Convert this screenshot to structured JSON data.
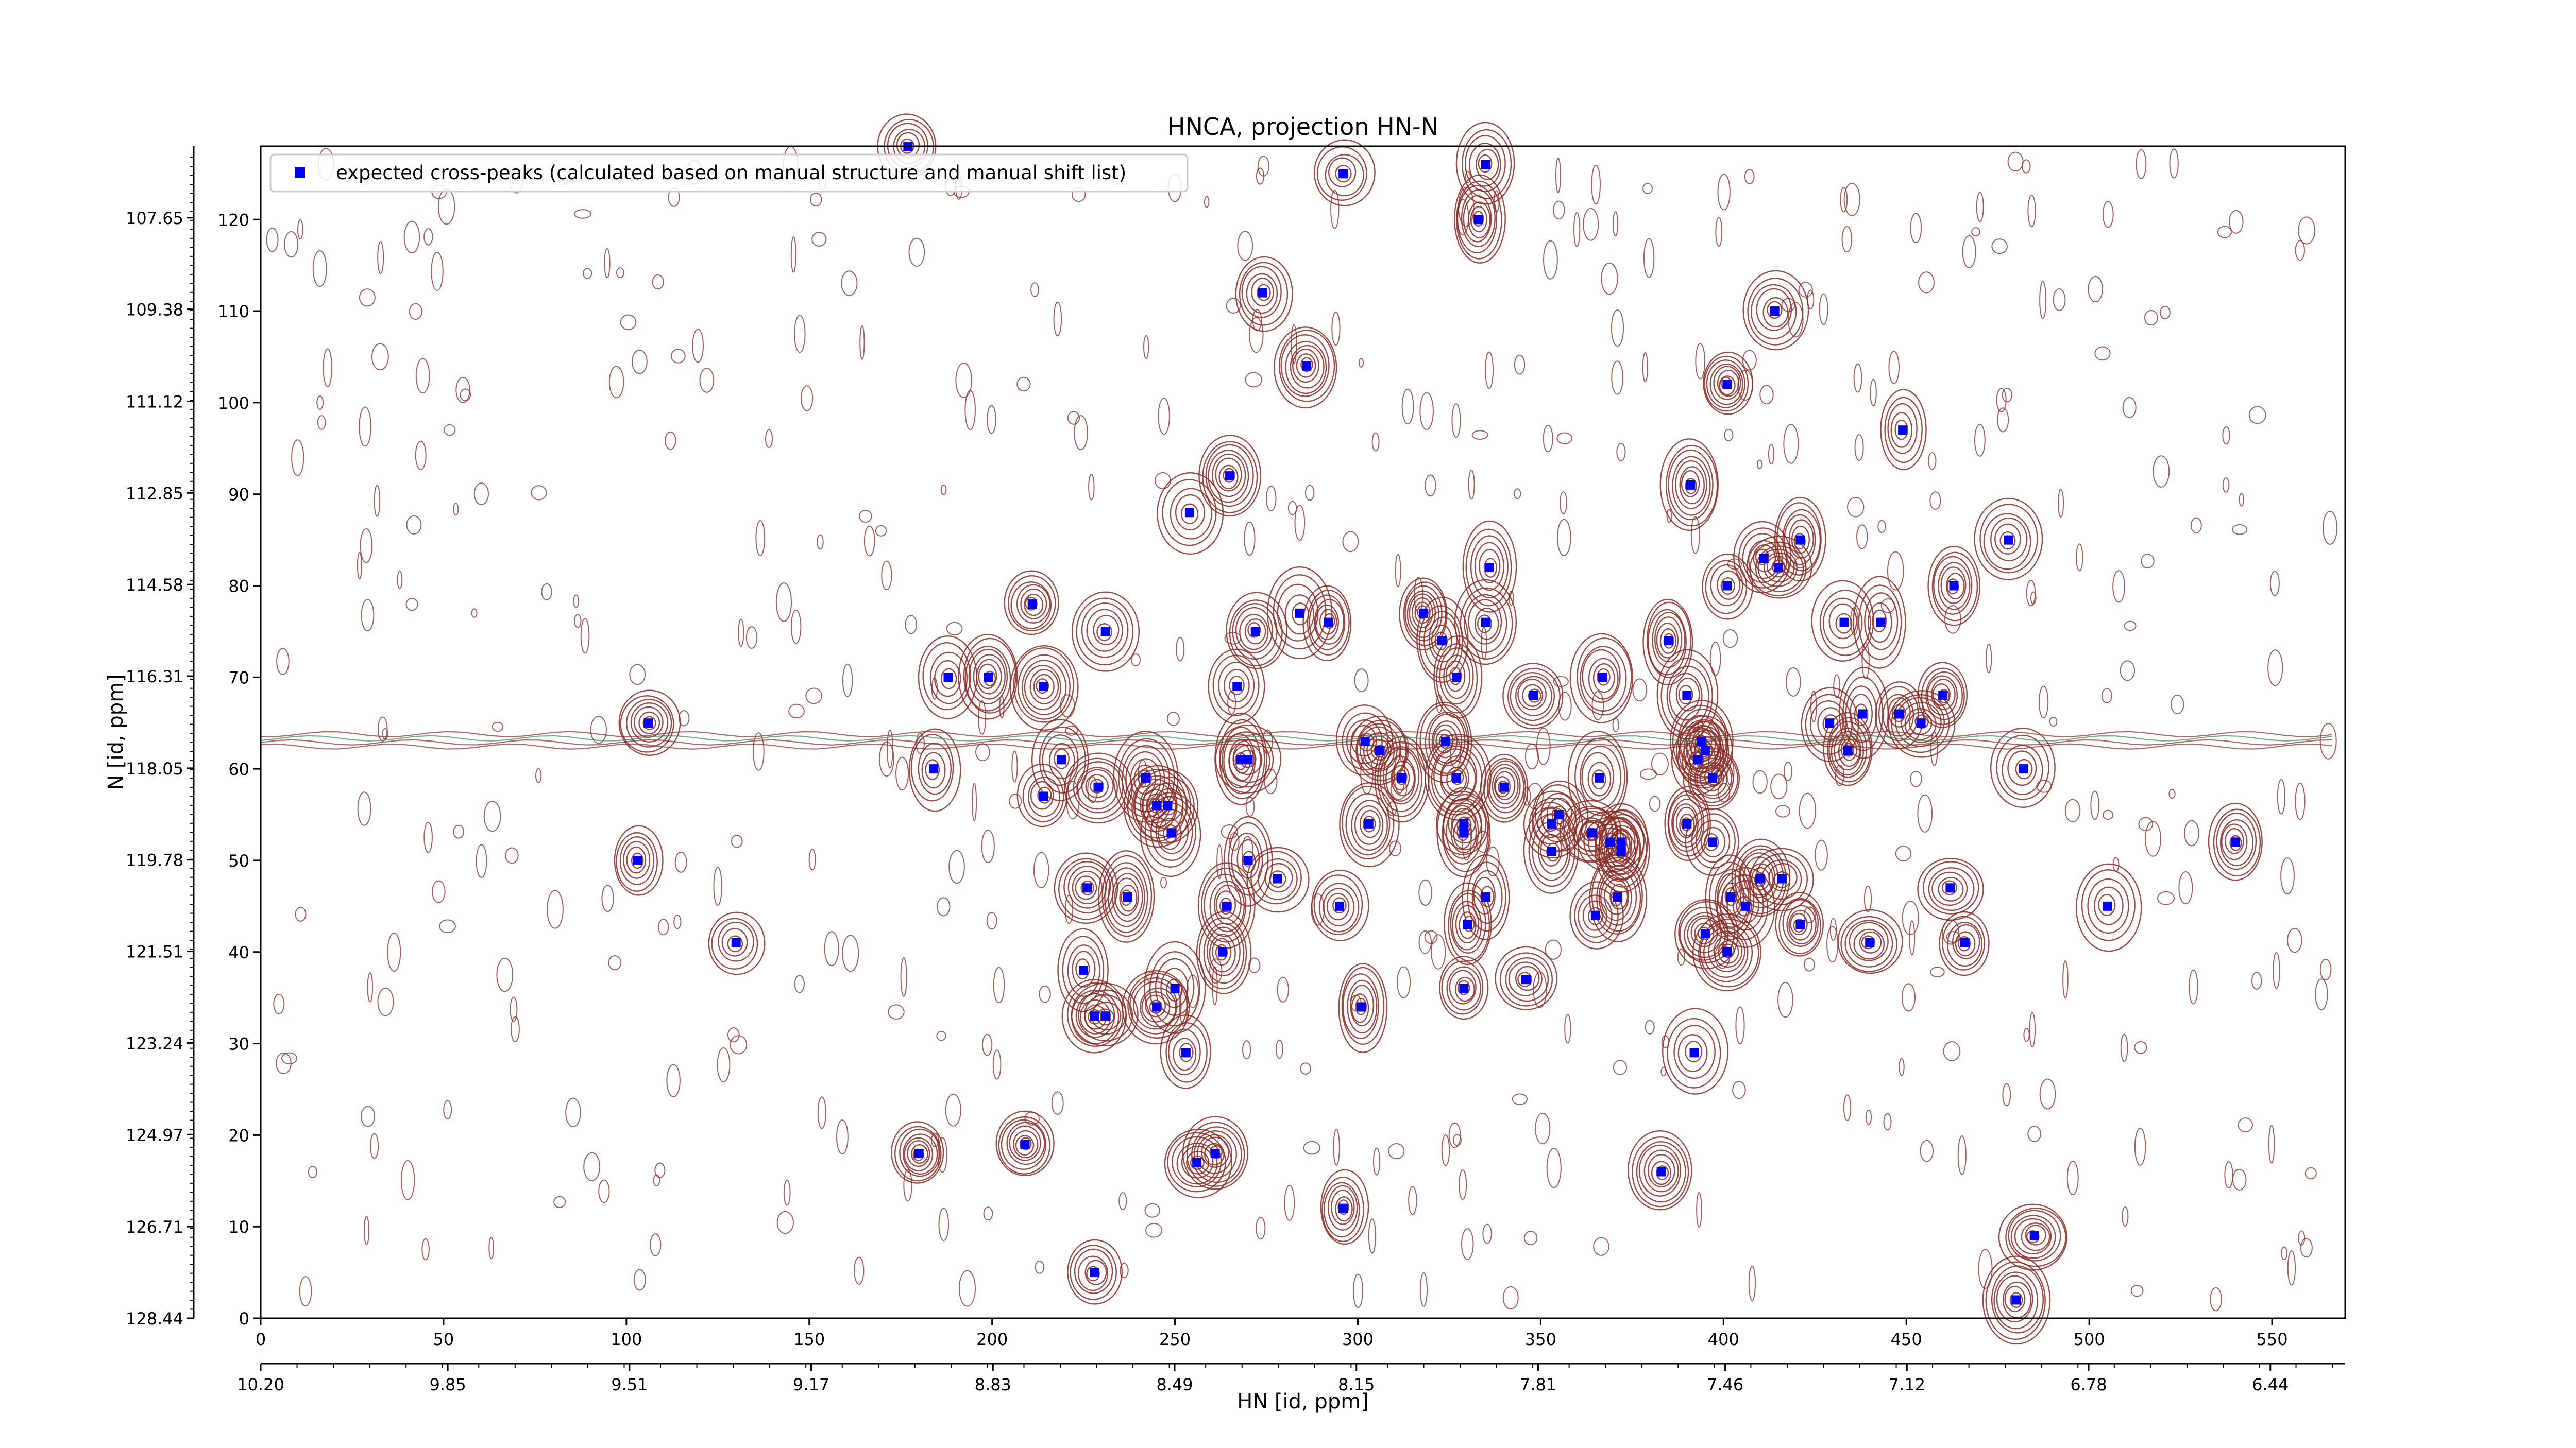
{
  "chart_data": {
    "type": "scatter",
    "title": "HNCA, projection HN-N",
    "xlabel": "HN [id, ppm]",
    "ylabel": "N [id, ppm]",
    "legend": {
      "position": "top-left",
      "label": "expected cross-peaks (calculated based on manual structure and manual shift list)"
    },
    "grid": false,
    "colors": {
      "marker": "#0000ff",
      "contour_positive": "#8b2a22",
      "contour_negative": "#2e8b57"
    },
    "x_index_range": [
      0,
      570
    ],
    "y_index_range": [
      0,
      128
    ],
    "x_ticks_index": [
      "0",
      "50",
      "100",
      "150",
      "200",
      "250",
      "300",
      "350",
      "400",
      "450",
      "500",
      "550"
    ],
    "x_ticks_ppm": [
      "10.20",
      "9.85",
      "9.51",
      "9.17",
      "8.83",
      "8.49",
      "8.15",
      "7.81",
      "7.46",
      "7.12",
      "6.78",
      "6.44"
    ],
    "y_ticks_index": [
      "0",
      "10",
      "20",
      "30",
      "40",
      "50",
      "60",
      "70",
      "80",
      "90",
      "100",
      "110",
      "120"
    ],
    "y_ticks_ppm": [
      "128.44",
      "126.71",
      "124.97",
      "123.24",
      "121.51",
      "119.78",
      "118.05",
      "116.31",
      "114.58",
      "112.85",
      "111.12",
      "109.38",
      "107.65"
    ],
    "x_ppm_range": [
      10.2,
      6.3
    ],
    "y_ppm_range": [
      128.44,
      106.3
    ],
    "points": [
      [
        177,
        128
      ],
      [
        296,
        125
      ],
      [
        335,
        126
      ],
      [
        333,
        120
      ],
      [
        274,
        112
      ],
      [
        286,
        104
      ],
      [
        414,
        110
      ],
      [
        401,
        102
      ],
      [
        449,
        97
      ],
      [
        265,
        92
      ],
      [
        254,
        88
      ],
      [
        391,
        91
      ],
      [
        478,
        85
      ],
      [
        421,
        85
      ],
      [
        411,
        83
      ],
      [
        415,
        82
      ],
      [
        401,
        80
      ],
      [
        463,
        80
      ],
      [
        211,
        78
      ],
      [
        336,
        82
      ],
      [
        272,
        75
      ],
      [
        284,
        77
      ],
      [
        231,
        75
      ],
      [
        318,
        77
      ],
      [
        323,
        74
      ],
      [
        292,
        76
      ],
      [
        335,
        76
      ],
      [
        385,
        74
      ],
      [
        433,
        76
      ],
      [
        443,
        76
      ],
      [
        188,
        70
      ],
      [
        199,
        70
      ],
      [
        214,
        69
      ],
      [
        267,
        69
      ],
      [
        327,
        70
      ],
      [
        348,
        68
      ],
      [
        367,
        70
      ],
      [
        390,
        68
      ],
      [
        460,
        68
      ],
      [
        448,
        66
      ],
      [
        438,
        66
      ],
      [
        429,
        65
      ],
      [
        454,
        65
      ],
      [
        106,
        65
      ],
      [
        324,
        63
      ],
      [
        302,
        63
      ],
      [
        306,
        62
      ],
      [
        268,
        61
      ],
      [
        270,
        61
      ],
      [
        219,
        61
      ],
      [
        184,
        60
      ],
      [
        312,
        59
      ],
      [
        327,
        59
      ],
      [
        340,
        58
      ],
      [
        366,
        59
      ],
      [
        394,
        63
      ],
      [
        395,
        62
      ],
      [
        393,
        61
      ],
      [
        397,
        59
      ],
      [
        434,
        62
      ],
      [
        482,
        60
      ],
      [
        229,
        58
      ],
      [
        242,
        59
      ],
      [
        214,
        57
      ],
      [
        245,
        56
      ],
      [
        248,
        56
      ],
      [
        249,
        53
      ],
      [
        303,
        54
      ],
      [
        329,
        54
      ],
      [
        329,
        53
      ],
      [
        355,
        55
      ],
      [
        353,
        54
      ],
      [
        364,
        53
      ],
      [
        369,
        52
      ],
      [
        372,
        52
      ],
      [
        372,
        51
      ],
      [
        390,
        54
      ],
      [
        397,
        52
      ],
      [
        353,
        51
      ],
      [
        540,
        52
      ],
      [
        103,
        50
      ],
      [
        226,
        47
      ],
      [
        237,
        46
      ],
      [
        270,
        50
      ],
      [
        278,
        48
      ],
      [
        264,
        45
      ],
      [
        295,
        45
      ],
      [
        335,
        46
      ],
      [
        371,
        46
      ],
      [
        410,
        48
      ],
      [
        416,
        48
      ],
      [
        402,
        46
      ],
      [
        406,
        45
      ],
      [
        365,
        44
      ],
      [
        421,
        43
      ],
      [
        462,
        47
      ],
      [
        505,
        45
      ],
      [
        395,
        42
      ],
      [
        401,
        40
      ],
      [
        440,
        41
      ],
      [
        466,
        41
      ],
      [
        263,
        40
      ],
      [
        130,
        41
      ],
      [
        225,
        38
      ],
      [
        330,
        43
      ],
      [
        329,
        36
      ],
      [
        346,
        37
      ],
      [
        228,
        33
      ],
      [
        231,
        33
      ],
      [
        245,
        34
      ],
      [
        250,
        36
      ],
      [
        301,
        34
      ],
      [
        253,
        29
      ],
      [
        392,
        29
      ],
      [
        180,
        18
      ],
      [
        209,
        19
      ],
      [
        261,
        18
      ],
      [
        256,
        17
      ],
      [
        296,
        12
      ],
      [
        383,
        16
      ],
      [
        485,
        9
      ],
      [
        228,
        5
      ],
      [
        480,
        2
      ]
    ]
  }
}
